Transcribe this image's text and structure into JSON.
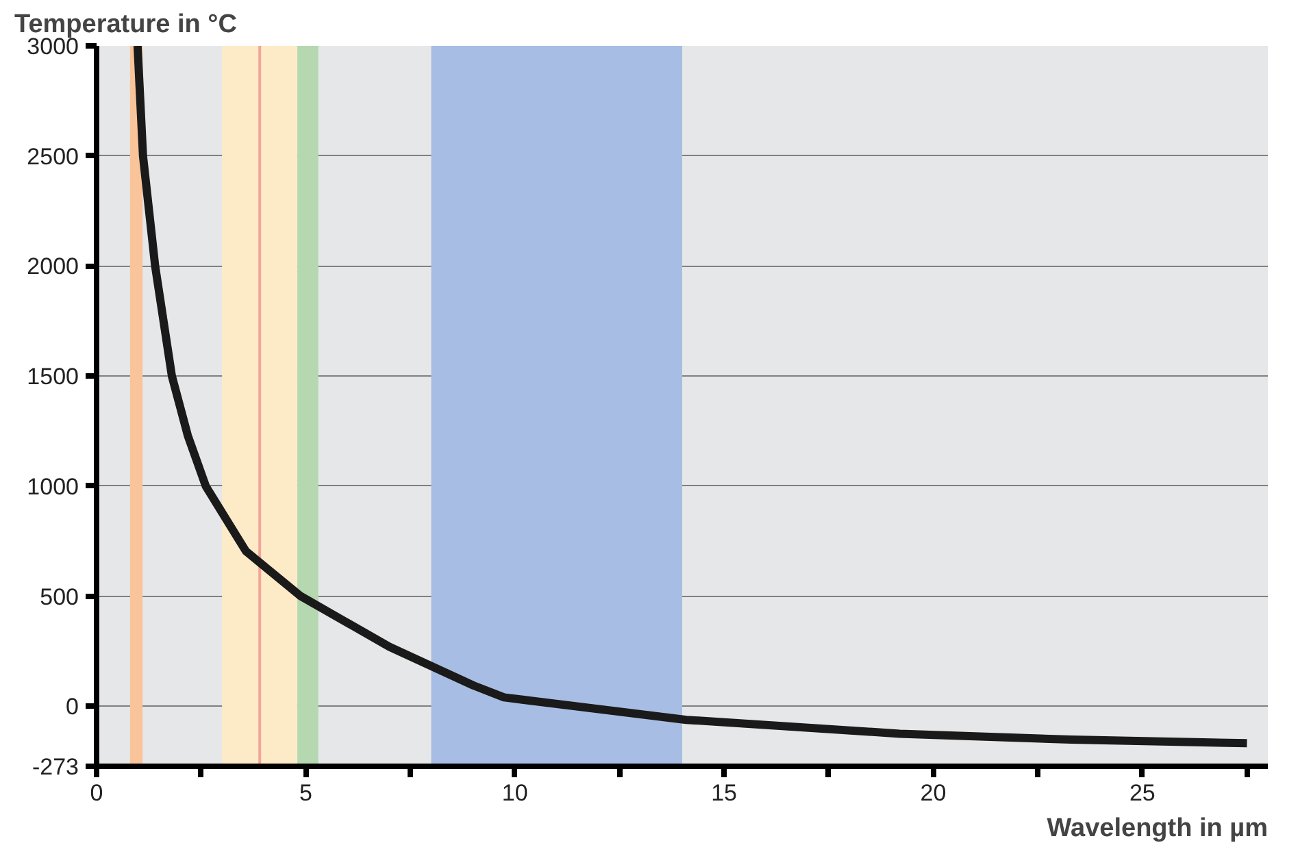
{
  "chart_data": {
    "type": "line",
    "ylabel": "Temperature in °C",
    "xlabel": "Wavelength in µm",
    "x": [
      0.98,
      1.11,
      1.4,
      1.8,
      2.18,
      2.61,
      3.57,
      4.88,
      7.0,
      9.0,
      9.74,
      14.1,
      19.2,
      23.3,
      27.5
    ],
    "series": [
      {
        "color": "#1a1a1a",
        "values": [
          3000,
          2500,
          2000,
          1500,
          1230,
          1000,
          704,
          500,
          270,
          95,
          40,
          -62,
          -125,
          -152,
          -168
        ]
      }
    ],
    "xlim": [
      0,
      28
    ],
    "xticks": [
      0,
      {
        "value": 2.5,
        "label": null
      },
      5,
      {
        "value": 7.5,
        "label": null
      },
      10,
      {
        "value": 12.5,
        "label": null
      },
      15,
      {
        "value": 17.5,
        "label": null
      },
      20,
      {
        "value": 22.5,
        "label": null
      },
      25,
      {
        "value": 27.5,
        "label": null
      }
    ],
    "ylim": [
      -273,
      3000
    ],
    "yticks": [
      -273,
      0,
      500,
      1000,
      1500,
      2000,
      2500,
      3000
    ],
    "grid": "y",
    "marker": "none",
    "line_style": "solid",
    "bands": [
      {
        "axis": "x",
        "from": 0.8,
        "to": 1.1,
        "color": "#f9c49a"
      },
      {
        "axis": "x",
        "from": 3.0,
        "to": 4.8,
        "color": "#fdebc8"
      },
      {
        "axis": "x",
        "from": 4.8,
        "to": 5.3,
        "color": "#b5d8b0"
      },
      {
        "axis": "x",
        "from": 8.0,
        "to": 14.0,
        "color": "#a8bde3"
      }
    ],
    "ref_lines": [
      {
        "axis": "x",
        "value": 3.9,
        "color": "#f4a49a",
        "line_style": "solid"
      }
    ]
  }
}
